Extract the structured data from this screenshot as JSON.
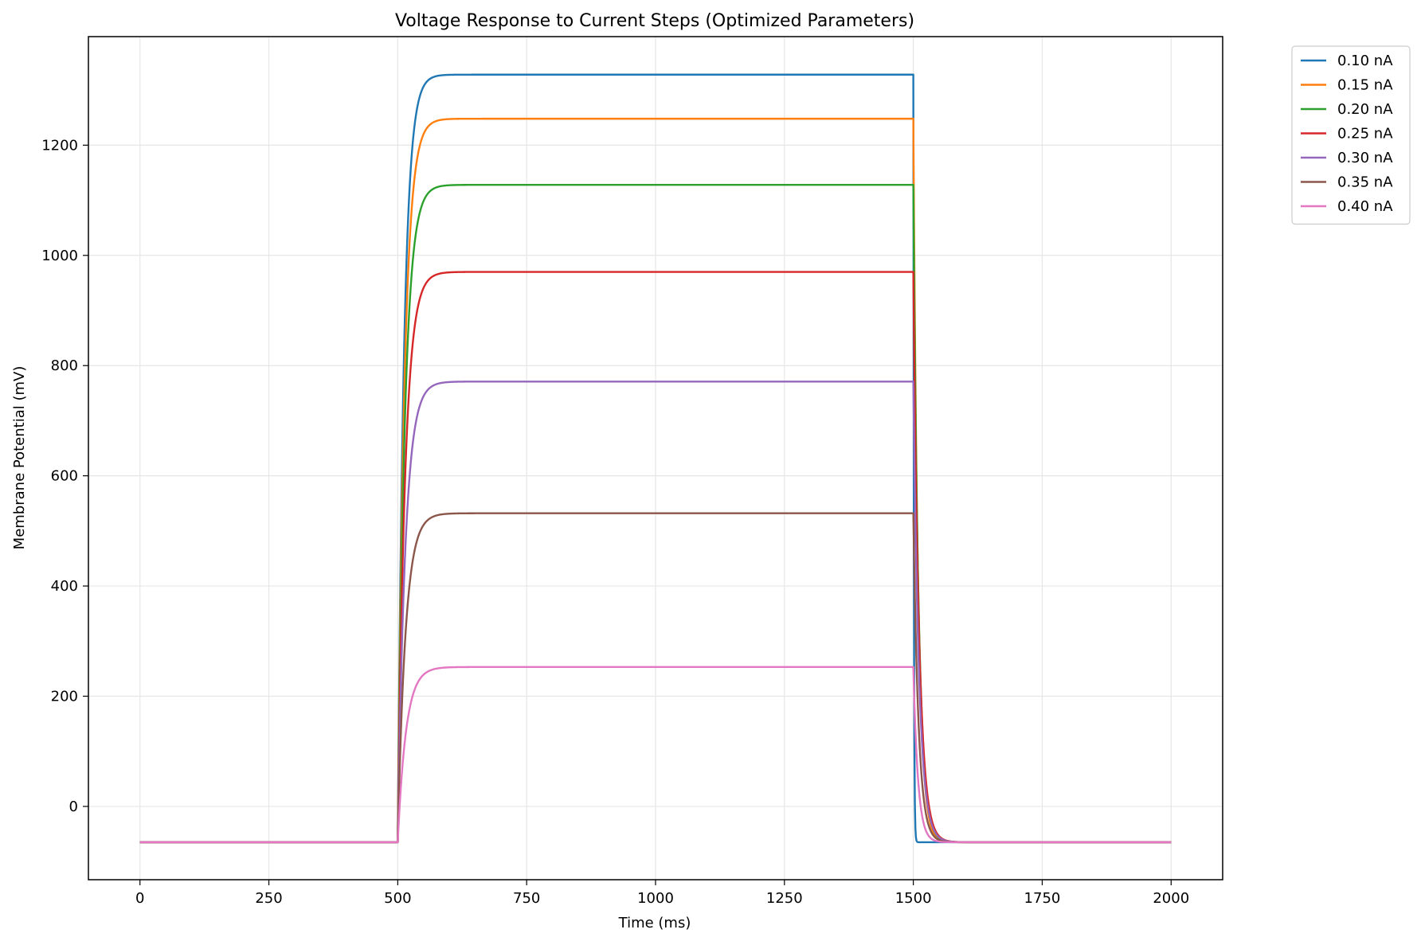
{
  "chart_data": {
    "type": "line",
    "title": "Voltage Response to Current Steps (Optimized Parameters)",
    "xlabel": "Time (ms)",
    "ylabel": "Membrane Potential (mV)",
    "xlim": [
      -100,
      2100
    ],
    "ylim": [
      -133,
      1397
    ],
    "xticks": [
      0,
      250,
      500,
      750,
      1000,
      1250,
      1500,
      1750,
      2000
    ],
    "yticks": [
      0,
      200,
      400,
      600,
      800,
      1000,
      1200
    ],
    "grid": true,
    "legend_position": "outside-top-right",
    "stimulus": {
      "onset_ms": 500,
      "offset_ms": 1500,
      "end_ms": 2000
    },
    "resting_potential": -65,
    "series": [
      {
        "name": "0.10 nA",
        "color": "#1f77b4",
        "plateau": 1328,
        "tau_rise": 12,
        "tau_decay": 1
      },
      {
        "name": "0.15 nA",
        "color": "#ff7f0e",
        "plateau": 1248,
        "tau_rise": 13,
        "tau_decay": 9
      },
      {
        "name": "0.20 nA",
        "color": "#2ca02c",
        "plateau": 1128,
        "tau_rise": 13.5,
        "tau_decay": 10
      },
      {
        "name": "0.25 nA",
        "color": "#d62728",
        "plateau": 970,
        "tau_rise": 14,
        "tau_decay": 11
      },
      {
        "name": "0.30 nA",
        "color": "#9467bd",
        "plateau": 771,
        "tau_rise": 14.5,
        "tau_decay": 11
      },
      {
        "name": "0.35 nA",
        "color": "#8c564b",
        "plateau": 532,
        "tau_rise": 15,
        "tau_decay": 10
      },
      {
        "name": "0.40 nA",
        "color": "#e377c2",
        "plateau": 253,
        "tau_rise": 16,
        "tau_decay": 9
      }
    ]
  }
}
